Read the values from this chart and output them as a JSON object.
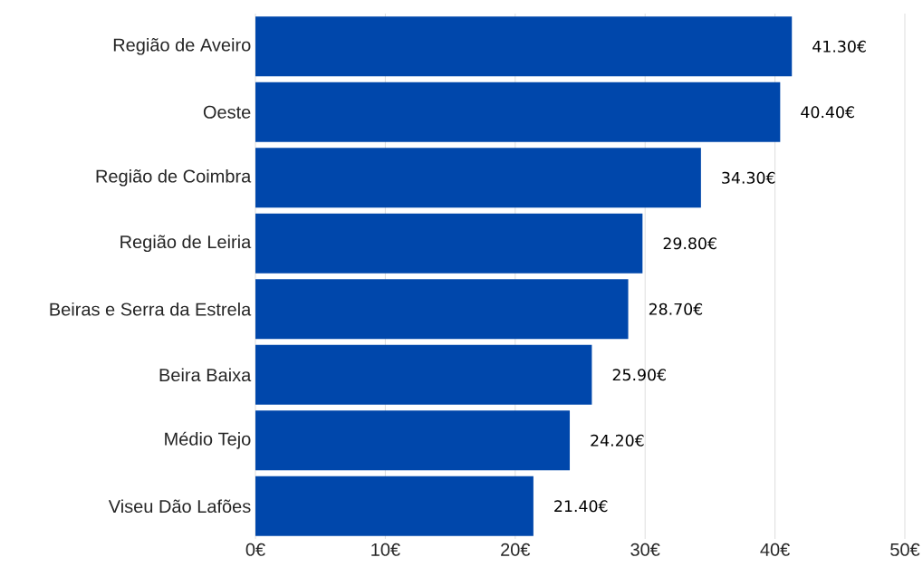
{
  "chart_data": {
    "type": "bar",
    "orientation": "horizontal",
    "categories": [
      "Região de Aveiro",
      "Oeste",
      "Região de Coimbra",
      "Região de Leiria",
      "Beiras e Serra da Estrela",
      "Beira Baixa",
      "Médio Tejo",
      "Viseu Dão Lafões"
    ],
    "values": [
      41.3,
      40.4,
      34.3,
      29.8,
      28.7,
      25.9,
      24.2,
      21.4
    ],
    "value_labels": [
      "41.30€",
      "40.40€",
      "34.30€",
      "29.80€",
      "28.70€",
      "25.90€",
      "24.20€",
      "21.40€"
    ],
    "color": "#0047ab",
    "xlim": [
      0,
      50
    ],
    "xticks": [
      {
        "value": 0,
        "label": "0€"
      },
      {
        "value": 10,
        "label": "10€"
      },
      {
        "value": 20,
        "label": "20€"
      },
      {
        "value": 30,
        "label": "30€"
      },
      {
        "value": 40,
        "label": "40€"
      },
      {
        "value": 50,
        "label": "50€"
      }
    ],
    "grid": "x"
  }
}
